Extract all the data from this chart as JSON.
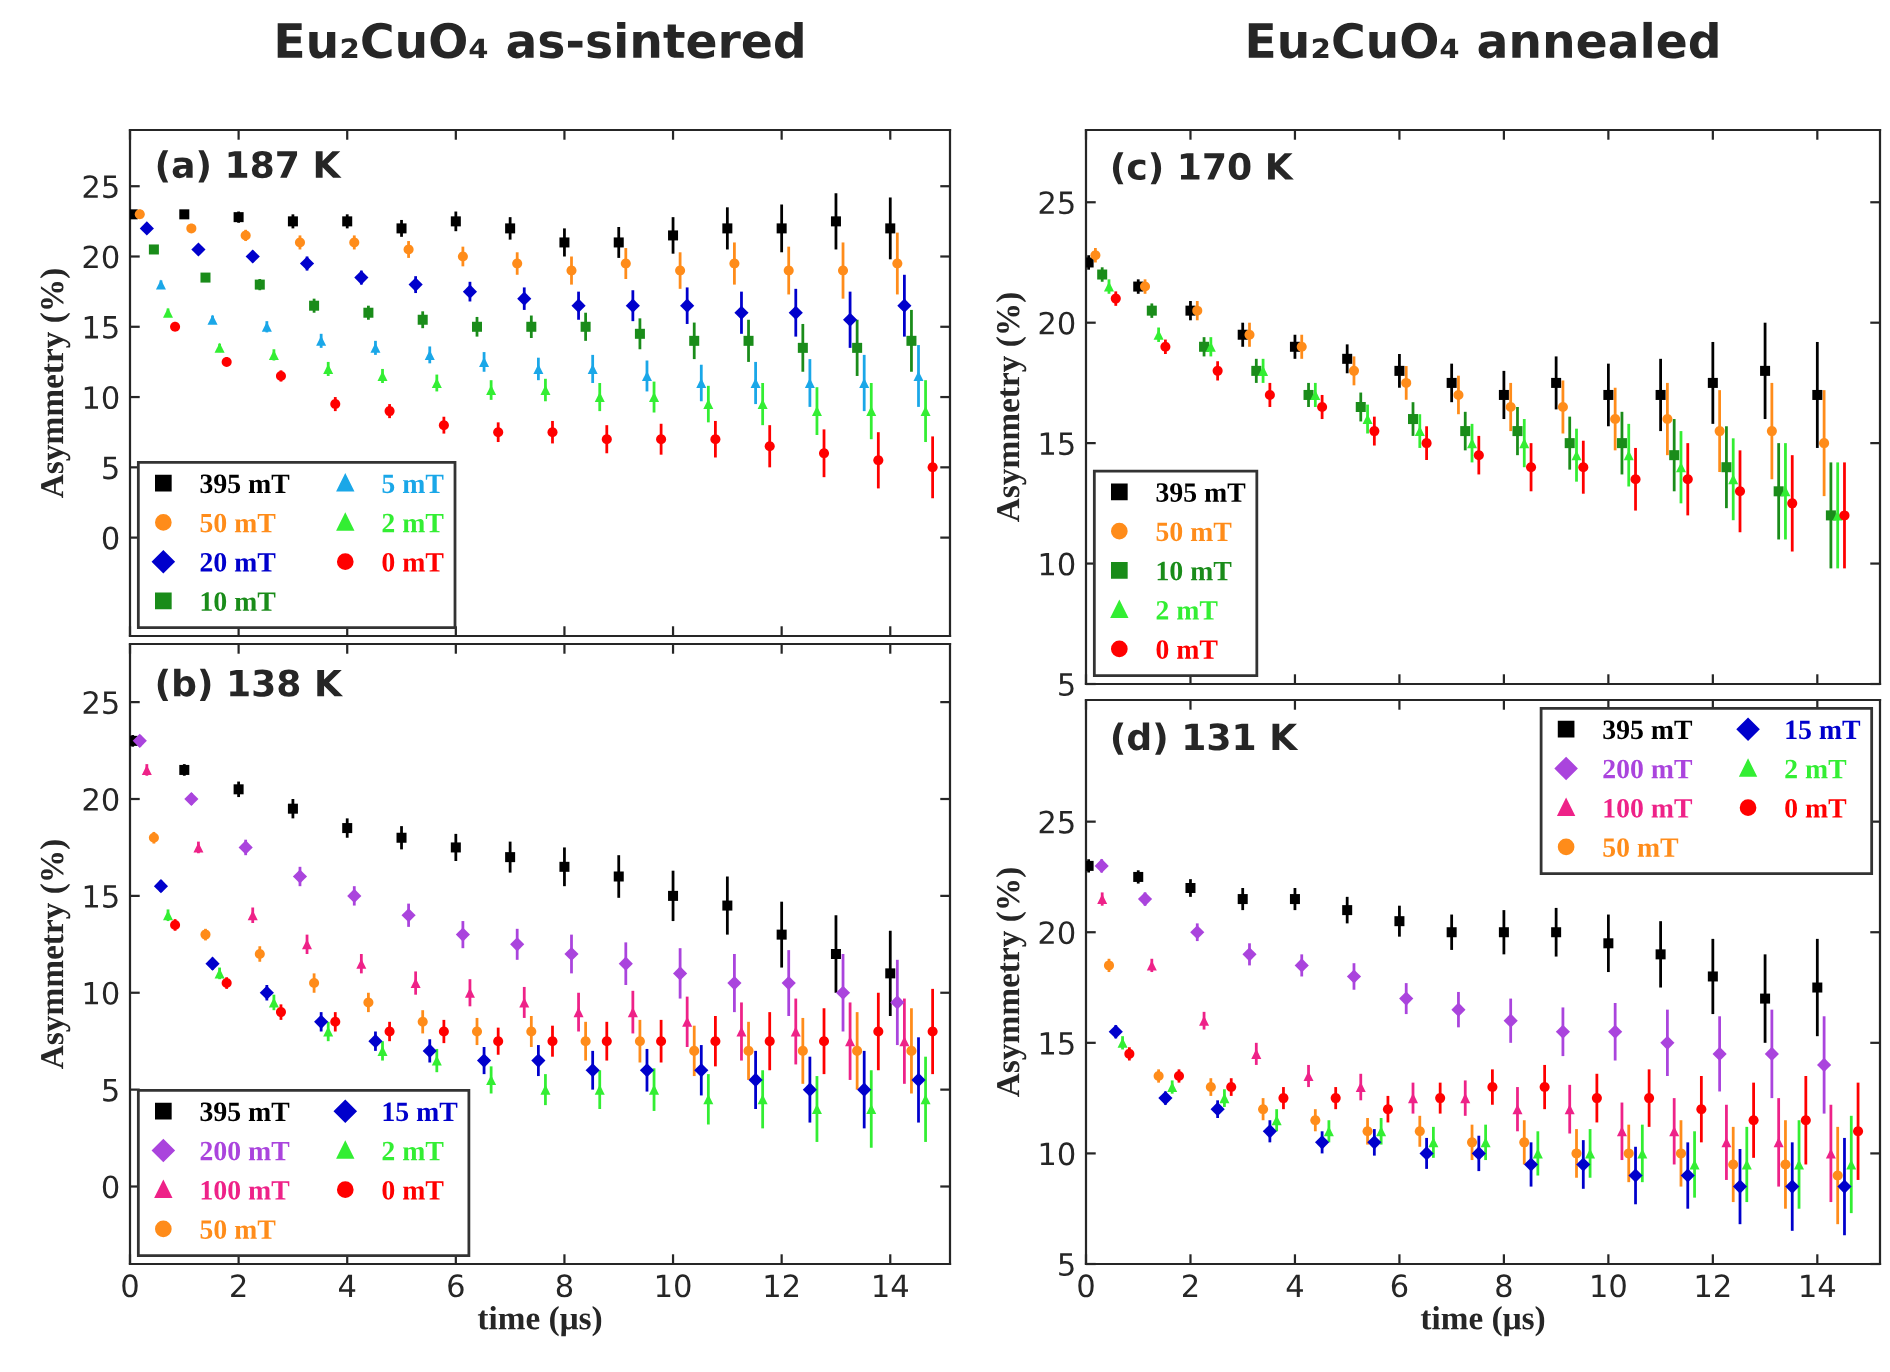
{
  "chart_data": [
    {
      "type": "scatter",
      "title": "Eu₂CuO₄ as-sintered",
      "annotations": [
        "(a) 187 K"
      ],
      "ylabel": "Asymmetry (%)",
      "xlim": [
        0,
        15.1
      ],
      "xticks": [
        0,
        2,
        4,
        6,
        8,
        10,
        12,
        14
      ],
      "ylim": [
        -7,
        29
      ],
      "yticks": [
        0,
        5,
        10,
        15,
        20,
        25
      ],
      "tick_labels": "y",
      "legend": "bottom left",
      "grid": false,
      "series": [
        {
          "name": "395 mT",
          "color": "#000000",
          "marker": "square",
          "x": [
            0.05,
            1,
            2,
            3,
            4,
            5,
            6,
            7,
            8,
            9,
            10,
            11,
            12,
            13,
            14
          ],
          "values": [
            23,
            23,
            22.8,
            22.5,
            22.5,
            22,
            22.5,
            22,
            21,
            21,
            21.5,
            22,
            22,
            22.5,
            22
          ],
          "errors": [
            0.3,
            0.3,
            0.4,
            0.5,
            0.5,
            0.6,
            0.7,
            0.8,
            1.0,
            1.1,
            1.3,
            1.5,
            1.7,
            2.0,
            2.2
          ]
        },
        {
          "name": "50 mT",
          "color": "#ff8c1a",
          "marker": "circle",
          "x": [
            0.18,
            1.13,
            2.13,
            3.13,
            4.13,
            5.13,
            6.13,
            7.13,
            8.13,
            9.13,
            10.13,
            11.13,
            12.13,
            13.13,
            14.13
          ],
          "values": [
            23,
            22,
            21.5,
            21,
            21,
            20.5,
            20,
            19.5,
            19,
            19.5,
            19,
            19.5,
            19,
            19,
            19.5
          ],
          "errors": [
            0.3,
            0.3,
            0.4,
            0.5,
            0.5,
            0.6,
            0.7,
            0.8,
            1.0,
            1.1,
            1.3,
            1.5,
            1.7,
            2.0,
            2.2
          ]
        },
        {
          "name": "20 mT",
          "color": "#0000cc",
          "marker": "diamond",
          "x": [
            0.31,
            1.26,
            2.26,
            3.26,
            4.26,
            5.26,
            6.26,
            7.26,
            8.26,
            9.26,
            10.26,
            11.26,
            12.26,
            13.26,
            14.26
          ],
          "values": [
            22,
            20.5,
            20,
            19.5,
            18.5,
            18,
            17.5,
            17,
            16.5,
            16.5,
            16.5,
            16,
            16,
            15.5,
            16.5
          ],
          "errors": [
            0.3,
            0.3,
            0.4,
            0.5,
            0.5,
            0.6,
            0.7,
            0.8,
            1.0,
            1.1,
            1.3,
            1.5,
            1.7,
            2.0,
            2.2
          ]
        },
        {
          "name": "10 mT",
          "color": "#1a8c1a",
          "marker": "square",
          "x": [
            0.44,
            1.39,
            2.39,
            3.39,
            4.39,
            5.39,
            6.39,
            7.39,
            8.39,
            9.39,
            10.39,
            11.39,
            12.39,
            13.39,
            14.39
          ],
          "values": [
            20.5,
            18.5,
            18,
            16.5,
            16,
            15.5,
            15,
            15,
            15,
            14.5,
            14,
            14,
            13.5,
            13.5,
            14
          ],
          "errors": [
            0.3,
            0.3,
            0.4,
            0.5,
            0.5,
            0.6,
            0.7,
            0.8,
            1.0,
            1.1,
            1.3,
            1.5,
            1.7,
            2.0,
            2.2
          ]
        },
        {
          "name": "5 mT",
          "color": "#1aa7e8",
          "marker": "triangle",
          "x": [
            0.57,
            1.52,
            2.52,
            3.52,
            4.52,
            5.52,
            6.52,
            7.52,
            8.52,
            9.52,
            10.52,
            11.52,
            12.52,
            13.52,
            14.52
          ],
          "values": [
            18,
            15.5,
            15,
            14,
            13.5,
            13,
            12.5,
            12,
            12,
            11.5,
            11,
            11,
            11,
            11,
            11.5
          ],
          "errors": [
            0.3,
            0.3,
            0.4,
            0.5,
            0.5,
            0.6,
            0.7,
            0.8,
            1.0,
            1.1,
            1.3,
            1.5,
            1.7,
            2.0,
            2.2
          ]
        },
        {
          "name": "2 mT",
          "color": "#33ee33",
          "marker": "triangle",
          "x": [
            0.7,
            1.65,
            2.65,
            3.65,
            4.65,
            5.65,
            6.65,
            7.65,
            8.65,
            9.65,
            10.65,
            11.65,
            12.65,
            13.65,
            14.65
          ],
          "values": [
            16,
            13.5,
            13,
            12,
            11.5,
            11,
            10.5,
            10.5,
            10,
            10,
            9.5,
            9.5,
            9,
            9,
            9
          ],
          "errors": [
            0.3,
            0.3,
            0.4,
            0.5,
            0.5,
            0.6,
            0.7,
            0.8,
            1.0,
            1.1,
            1.3,
            1.5,
            1.7,
            2.0,
            2.2
          ]
        },
        {
          "name": "0 mT",
          "color": "#ff0000",
          "marker": "circle",
          "x": [
            0.83,
            1.78,
            2.78,
            3.78,
            4.78,
            5.78,
            6.78,
            7.78,
            8.78,
            9.78,
            10.78,
            11.78,
            12.78,
            13.78,
            14.78
          ],
          "values": [
            15,
            12.5,
            11.5,
            9.5,
            9,
            8,
            7.5,
            7.5,
            7,
            7,
            7,
            6.5,
            6,
            5.5,
            5
          ],
          "errors": [
            0.3,
            0.3,
            0.4,
            0.5,
            0.5,
            0.6,
            0.7,
            0.8,
            1.0,
            1.1,
            1.3,
            1.5,
            1.7,
            2.0,
            2.2
          ]
        }
      ]
    },
    {
      "type": "scatter",
      "annotations": [
        "(b) 138 K"
      ],
      "xlabel": "time (μs)",
      "ylabel": "Asymmetry (%)",
      "xlim": [
        0,
        15.1
      ],
      "xticks": [
        0,
        2,
        4,
        6,
        8,
        10,
        12,
        14
      ],
      "ylim": [
        -4,
        28
      ],
      "yticks": [
        0,
        5,
        10,
        15,
        20,
        25
      ],
      "legend": "bottom left",
      "grid": false,
      "series": [
        {
          "name": "395 mT",
          "color": "#000000",
          "marker": "square",
          "x": [
            0.05,
            1,
            2,
            3,
            4,
            5,
            6,
            7,
            8,
            9,
            10,
            11,
            12,
            13,
            14
          ],
          "values": [
            23,
            21.5,
            20.5,
            19.5,
            18.5,
            18,
            17.5,
            17,
            16.5,
            16,
            15,
            14.5,
            13,
            12,
            11
          ],
          "errors": [
            0.3,
            0.3,
            0.4,
            0.5,
            0.5,
            0.6,
            0.7,
            0.8,
            1.0,
            1.1,
            1.3,
            1.5,
            1.7,
            2.0,
            2.2
          ]
        },
        {
          "name": "200 mT",
          "color": "#aa44dd",
          "marker": "diamond",
          "x": [
            0.18,
            1.13,
            2.13,
            3.13,
            4.13,
            5.13,
            6.13,
            7.13,
            8.13,
            9.13,
            10.13,
            11.13,
            12.13,
            13.13,
            14.13
          ],
          "values": [
            23,
            20,
            17.5,
            16,
            15,
            14,
            13,
            12.5,
            12,
            11.5,
            11,
            10.5,
            10.5,
            10,
            9.5
          ],
          "errors": [
            0.3,
            0.3,
            0.4,
            0.5,
            0.5,
            0.6,
            0.7,
            0.8,
            1.0,
            1.1,
            1.3,
            1.5,
            1.7,
            2.0,
            2.2
          ]
        },
        {
          "name": "100 mT",
          "color": "#ee2288",
          "marker": "triangle",
          "x": [
            0.31,
            1.26,
            2.26,
            3.26,
            4.26,
            5.26,
            6.26,
            7.26,
            8.26,
            9.26,
            10.26,
            11.26,
            12.26,
            13.26,
            14.26
          ],
          "values": [
            21.5,
            17.5,
            14,
            12.5,
            11.5,
            10.5,
            10,
            9.5,
            9,
            9,
            8.5,
            8,
            8,
            7.5,
            7.5
          ],
          "errors": [
            0.3,
            0.3,
            0.4,
            0.5,
            0.5,
            0.6,
            0.7,
            0.8,
            1.0,
            1.1,
            1.3,
            1.5,
            1.7,
            2.0,
            2.2
          ]
        },
        {
          "name": "50 mT",
          "color": "#ff8c1a",
          "marker": "circle",
          "x": [
            0.44,
            1.39,
            2.39,
            3.39,
            4.39,
            5.39,
            6.39,
            7.39,
            8.39,
            9.39,
            10.39,
            11.39,
            12.39,
            13.39,
            14.39
          ],
          "values": [
            18,
            13,
            12,
            10.5,
            9.5,
            8.5,
            8,
            8,
            7.5,
            7.5,
            7,
            7,
            7,
            7,
            7
          ],
          "errors": [
            0.3,
            0.3,
            0.4,
            0.5,
            0.5,
            0.6,
            0.7,
            0.8,
            1.0,
            1.1,
            1.3,
            1.5,
            1.7,
            2.0,
            2.2
          ]
        },
        {
          "name": "15 mT",
          "color": "#0000cc",
          "marker": "diamond",
          "x": [
            0.57,
            1.52,
            2.52,
            3.52,
            4.52,
            5.52,
            6.52,
            7.52,
            8.52,
            9.52,
            10.52,
            11.52,
            12.52,
            13.52,
            14.52
          ],
          "values": [
            15.5,
            11.5,
            10,
            8.5,
            7.5,
            7,
            6.5,
            6.5,
            6,
            6,
            6,
            5.5,
            5,
            5,
            5.5
          ],
          "errors": [
            0.3,
            0.3,
            0.4,
            0.5,
            0.5,
            0.6,
            0.7,
            0.8,
            1.0,
            1.1,
            1.3,
            1.5,
            1.7,
            2.0,
            2.2
          ]
        },
        {
          "name": "2 mT",
          "color": "#33ee33",
          "marker": "triangle",
          "x": [
            0.7,
            1.65,
            2.65,
            3.65,
            4.65,
            5.65,
            6.65,
            7.65,
            8.65,
            9.65,
            10.65,
            11.65,
            12.65,
            13.65,
            14.65
          ],
          "values": [
            14,
            11,
            9.5,
            8,
            7,
            6.5,
            5.5,
            5,
            5,
            5,
            4.5,
            4.5,
            4,
            4,
            4.5
          ],
          "errors": [
            0.3,
            0.3,
            0.4,
            0.5,
            0.5,
            0.6,
            0.7,
            0.8,
            1.0,
            1.1,
            1.3,
            1.5,
            1.7,
            2.0,
            2.2
          ]
        },
        {
          "name": "0 mT",
          "color": "#ff0000",
          "marker": "circle",
          "x": [
            0.83,
            1.78,
            2.78,
            3.78,
            4.78,
            5.78,
            6.78,
            7.78,
            8.78,
            9.78,
            10.78,
            11.78,
            12.78,
            13.78,
            14.78
          ],
          "values": [
            13.5,
            10.5,
            9,
            8.5,
            8,
            8,
            7.5,
            7.5,
            7.5,
            7.5,
            7.5,
            7.5,
            7.5,
            8,
            8
          ],
          "errors": [
            0.3,
            0.3,
            0.4,
            0.5,
            0.5,
            0.6,
            0.7,
            0.8,
            1.0,
            1.1,
            1.3,
            1.5,
            1.7,
            2.0,
            2.2
          ]
        }
      ]
    },
    {
      "type": "scatter",
      "title": "Eu₂CuO₄ annealed",
      "annotations": [
        "(c) 170 K"
      ],
      "ylabel": "Asymmetry (%)",
      "xlim": [
        0,
        15.2
      ],
      "xticks": [
        0,
        2,
        4,
        6,
        8,
        10,
        12,
        14
      ],
      "ylim": [
        5,
        28
      ],
      "yticks": [
        5,
        10,
        15,
        20,
        25
      ],
      "tick_labels": "y",
      "legend": "bottom left",
      "grid": false,
      "series": [
        {
          "name": "395 mT",
          "color": "#000000",
          "marker": "square",
          "x": [
            0.05,
            1,
            2,
            3,
            4,
            5,
            6,
            7,
            8,
            9,
            10,
            11,
            12,
            13,
            14
          ],
          "values": [
            22.5,
            21.5,
            20.5,
            19.5,
            19,
            18.5,
            18,
            17.5,
            17,
            17.5,
            17,
            17,
            17.5,
            18,
            17
          ],
          "errors": [
            0.3,
            0.3,
            0.4,
            0.5,
            0.5,
            0.6,
            0.7,
            0.8,
            1.0,
            1.1,
            1.3,
            1.5,
            1.7,
            2.0,
            2.2
          ]
        },
        {
          "name": "50 mT",
          "color": "#ff8c1a",
          "marker": "circle",
          "x": [
            0.18,
            1.13,
            2.13,
            3.13,
            4.13,
            5.13,
            6.13,
            7.13,
            8.13,
            9.13,
            10.13,
            11.13,
            12.13,
            13.13,
            14.13
          ],
          "values": [
            22.8,
            21.5,
            20.5,
            19.5,
            19,
            18,
            17.5,
            17,
            16.5,
            16.5,
            16,
            16,
            15.5,
            15.5,
            15
          ],
          "errors": [
            0.3,
            0.3,
            0.4,
            0.5,
            0.5,
            0.6,
            0.7,
            0.8,
            1.0,
            1.1,
            1.3,
            1.5,
            1.7,
            2.0,
            2.2
          ]
        },
        {
          "name": "10 mT",
          "color": "#1a8c1a",
          "marker": "square",
          "x": [
            0.31,
            1.26,
            2.26,
            3.26,
            4.26,
            5.26,
            6.26,
            7.26,
            8.26,
            9.26,
            10.26,
            11.26,
            12.26,
            13.26,
            14.26
          ],
          "values": [
            22,
            20.5,
            19,
            18,
            17,
            16.5,
            16,
            15.5,
            15.5,
            15,
            15,
            14.5,
            14,
            13,
            12
          ],
          "errors": [
            0.3,
            0.3,
            0.4,
            0.5,
            0.5,
            0.6,
            0.7,
            0.8,
            1.0,
            1.1,
            1.3,
            1.5,
            1.7,
            2.0,
            2.2
          ]
        },
        {
          "name": "2 mT",
          "color": "#33ee33",
          "marker": "triangle",
          "x": [
            0.44,
            1.39,
            2.39,
            3.39,
            4.39,
            5.39,
            6.39,
            7.39,
            8.39,
            9.39,
            10.39,
            11.39,
            12.39,
            13.39,
            14.39
          ],
          "values": [
            21.5,
            19.5,
            19,
            18,
            17,
            16,
            15.5,
            15,
            15,
            14.5,
            14.5,
            14,
            13.5,
            13,
            12
          ],
          "errors": [
            0.3,
            0.3,
            0.4,
            0.5,
            0.5,
            0.6,
            0.7,
            0.8,
            1.0,
            1.1,
            1.3,
            1.5,
            1.7,
            2.0,
            2.2
          ]
        },
        {
          "name": "0 mT",
          "color": "#ff0000",
          "marker": "circle",
          "x": [
            0.57,
            1.52,
            2.52,
            3.52,
            4.52,
            5.52,
            6.52,
            7.52,
            8.52,
            9.52,
            10.52,
            11.52,
            12.52,
            13.52,
            14.52
          ],
          "values": [
            21,
            19,
            18,
            17,
            16.5,
            15.5,
            15,
            14.5,
            14,
            14,
            13.5,
            13.5,
            13,
            12.5,
            12
          ],
          "errors": [
            0.3,
            0.3,
            0.4,
            0.5,
            0.5,
            0.6,
            0.7,
            0.8,
            1.0,
            1.1,
            1.3,
            1.5,
            1.7,
            2.0,
            2.2
          ]
        }
      ]
    },
    {
      "type": "scatter",
      "annotations": [
        "(d) 131 K"
      ],
      "xlabel": "time (μs)",
      "ylabel": "Asymmetry (%)",
      "xlim": [
        0,
        15.2
      ],
      "xticks": [
        0,
        2,
        4,
        6,
        8,
        10,
        12,
        14
      ],
      "ylim": [
        5,
        30.5
      ],
      "yticks": [
        5,
        10,
        15,
        20,
        25
      ],
      "legend": "top right",
      "grid": false,
      "series": [
        {
          "name": "395 mT",
          "color": "#000000",
          "marker": "square",
          "x": [
            0.05,
            1,
            2,
            3,
            4,
            5,
            6,
            7,
            8,
            9,
            10,
            11,
            12,
            13,
            14
          ],
          "values": [
            23,
            22.5,
            22,
            21.5,
            21.5,
            21,
            20.5,
            20,
            20,
            20,
            19.5,
            19,
            18,
            17,
            17.5
          ],
          "errors": [
            0.3,
            0.3,
            0.4,
            0.5,
            0.5,
            0.6,
            0.7,
            0.8,
            1.0,
            1.1,
            1.3,
            1.5,
            1.7,
            2.0,
            2.2
          ]
        },
        {
          "name": "200 mT",
          "color": "#aa44dd",
          "marker": "diamond",
          "x": [
            0.3,
            1.13,
            2.13,
            3.13,
            4.13,
            5.13,
            6.13,
            7.13,
            8.13,
            9.13,
            10.13,
            11.13,
            12.13,
            13.13,
            14.13
          ],
          "values": [
            23,
            21.5,
            20,
            19,
            18.5,
            18,
            17,
            16.5,
            16,
            15.5,
            15.5,
            15,
            14.5,
            14.5,
            14
          ],
          "errors": [
            0.3,
            0.3,
            0.4,
            0.5,
            0.5,
            0.6,
            0.7,
            0.8,
            1.0,
            1.1,
            1.3,
            1.5,
            1.7,
            2.0,
            2.2
          ]
        },
        {
          "name": "100 mT",
          "color": "#ee2288",
          "marker": "triangle",
          "x": [
            0.31,
            1.26,
            2.26,
            3.26,
            4.26,
            5.26,
            6.26,
            7.26,
            8.26,
            9.26,
            10.26,
            11.26,
            12.26,
            13.26,
            14.26
          ],
          "values": [
            21.5,
            18.5,
            16,
            14.5,
            13.5,
            13,
            12.5,
            12.5,
            12,
            12,
            11,
            11,
            10.5,
            10.5,
            10
          ],
          "errors": [
            0.3,
            0.3,
            0.4,
            0.5,
            0.5,
            0.6,
            0.7,
            0.8,
            1.0,
            1.1,
            1.3,
            1.5,
            1.7,
            2.0,
            2.2
          ]
        },
        {
          "name": "50 mT",
          "color": "#ff8c1a",
          "marker": "circle",
          "x": [
            0.44,
            1.39,
            2.39,
            3.39,
            4.39,
            5.39,
            6.39,
            7.39,
            8.39,
            9.39,
            10.39,
            11.39,
            12.39,
            13.39,
            14.39
          ],
          "values": [
            18.5,
            13.5,
            13,
            12,
            11.5,
            11,
            11,
            10.5,
            10.5,
            10,
            10,
            10,
            9.5,
            9.5,
            9
          ],
          "errors": [
            0.3,
            0.3,
            0.4,
            0.5,
            0.5,
            0.6,
            0.7,
            0.8,
            1.0,
            1.1,
            1.3,
            1.5,
            1.7,
            2.0,
            2.2
          ]
        },
        {
          "name": "15 mT",
          "color": "#0000cc",
          "marker": "diamond",
          "x": [
            0.57,
            1.52,
            2.52,
            3.52,
            4.52,
            5.52,
            6.52,
            7.52,
            8.52,
            9.52,
            10.52,
            11.52,
            12.52,
            13.52,
            14.52
          ],
          "values": [
            15.5,
            12.5,
            12,
            11,
            10.5,
            10.5,
            10,
            10,
            9.5,
            9.5,
            9,
            9,
            8.5,
            8.5,
            8.5
          ],
          "errors": [
            0.3,
            0.3,
            0.4,
            0.5,
            0.5,
            0.6,
            0.7,
            0.8,
            1.0,
            1.1,
            1.3,
            1.5,
            1.7,
            2.0,
            2.2
          ]
        },
        {
          "name": "2 mT",
          "color": "#33ee33",
          "marker": "triangle",
          "x": [
            0.7,
            1.65,
            2.65,
            3.65,
            4.65,
            5.65,
            6.65,
            7.65,
            8.65,
            9.65,
            10.65,
            11.65,
            12.65,
            13.65,
            14.65
          ],
          "values": [
            15,
            13,
            12.5,
            11.5,
            11,
            11,
            10.5,
            10.5,
            10,
            10,
            10,
            9.5,
            9.5,
            9.5,
            9.5
          ],
          "errors": [
            0.3,
            0.3,
            0.4,
            0.5,
            0.5,
            0.6,
            0.7,
            0.8,
            1.0,
            1.1,
            1.3,
            1.5,
            1.7,
            2.0,
            2.2
          ]
        },
        {
          "name": "0 mT",
          "color": "#ff0000",
          "marker": "circle",
          "x": [
            0.83,
            1.78,
            2.78,
            3.78,
            4.78,
            5.78,
            6.78,
            7.78,
            8.78,
            9.78,
            10.78,
            11.78,
            12.78,
            13.78,
            14.78
          ],
          "values": [
            14.5,
            13.5,
            13,
            12.5,
            12.5,
            12,
            12.5,
            13,
            13,
            12.5,
            12.5,
            12,
            11.5,
            11.5,
            11
          ],
          "errors": [
            0.3,
            0.3,
            0.4,
            0.5,
            0.5,
            0.6,
            0.7,
            0.8,
            1.0,
            1.1,
            1.3,
            1.5,
            1.7,
            2.0,
            2.2
          ]
        }
      ]
    }
  ]
}
